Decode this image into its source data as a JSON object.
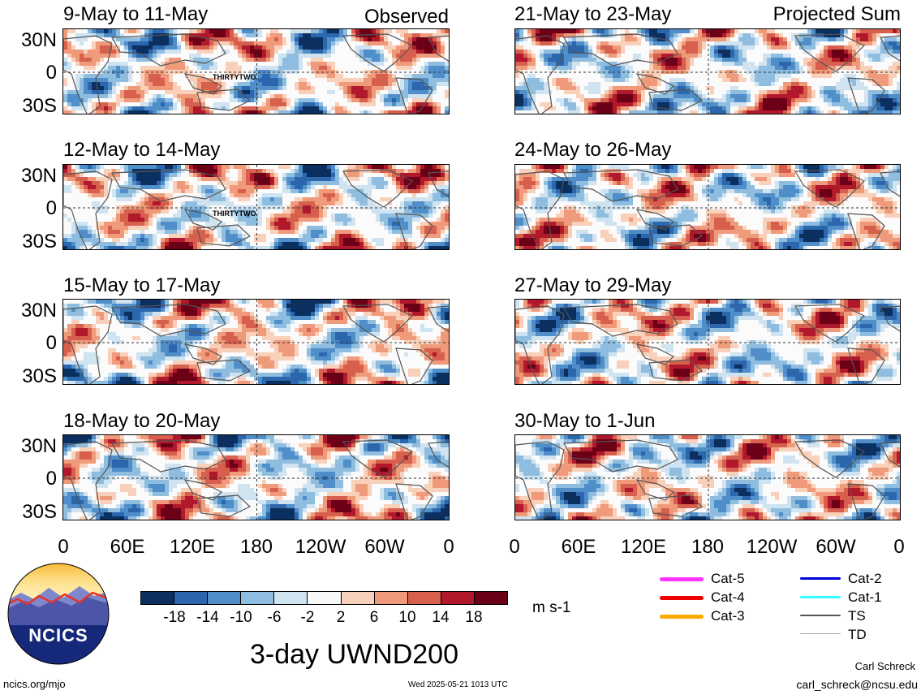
{
  "panels_left": [
    {
      "title": "9-May to 11-May",
      "tag": "Observed",
      "storm_label": "THIRTYTWO"
    },
    {
      "title": "12-May to 14-May",
      "tag": "",
      "storm_label": "THIRTYTWO"
    },
    {
      "title": "15-May to 17-May",
      "tag": "",
      "storm_label": ""
    },
    {
      "title": "18-May to 20-May",
      "tag": "",
      "storm_label": ""
    }
  ],
  "panels_right": [
    {
      "title": "21-May to 23-May",
      "tag": "Projected Sum"
    },
    {
      "title": "24-May to 26-May",
      "tag": ""
    },
    {
      "title": "27-May to 29-May",
      "tag": ""
    },
    {
      "title": "30-May to 1-Jun",
      "tag": ""
    }
  ],
  "lat_labels": [
    "30N",
    "0",
    "30S"
  ],
  "lon_labels": [
    "0",
    "60E",
    "120E",
    "180",
    "120W",
    "60W",
    "0"
  ],
  "colorbar": {
    "ticks": [
      "-18",
      "-14",
      "-10",
      "-6",
      "-2",
      "2",
      "6",
      "10",
      "14",
      "18"
    ],
    "colors": [
      "#0b2f5e",
      "#2c66ac",
      "#4f8ec8",
      "#8fbddf",
      "#cfe3f1",
      "#f8f8f8",
      "#f9d0ba",
      "#ef9a7a",
      "#d6604d",
      "#b1182b",
      "#6b0016"
    ],
    "units": "m s-1"
  },
  "legend": [
    {
      "label": "Cat-5",
      "color": "#ff33ff"
    },
    {
      "label": "Cat-4",
      "color": "#ee0000"
    },
    {
      "label": "Cat-3",
      "color": "#ffaa00"
    },
    {
      "label": "Cat-2",
      "color": "#0000dd"
    },
    {
      "label": "Cat-1",
      "color": "#33ffff"
    },
    {
      "label": "TS",
      "color": "#555555"
    },
    {
      "label": "TD",
      "color": "#aaaaaa"
    }
  ],
  "logo": {
    "text": "NCICS"
  },
  "footer": {
    "main_title": "3-day UWND200",
    "website": "ncics.org/mjo",
    "timestamp": "Wed 2025-05-21 1013 UTC",
    "author": "Carl Schreck",
    "email": "carl_schreck@ncsu.edu"
  }
}
